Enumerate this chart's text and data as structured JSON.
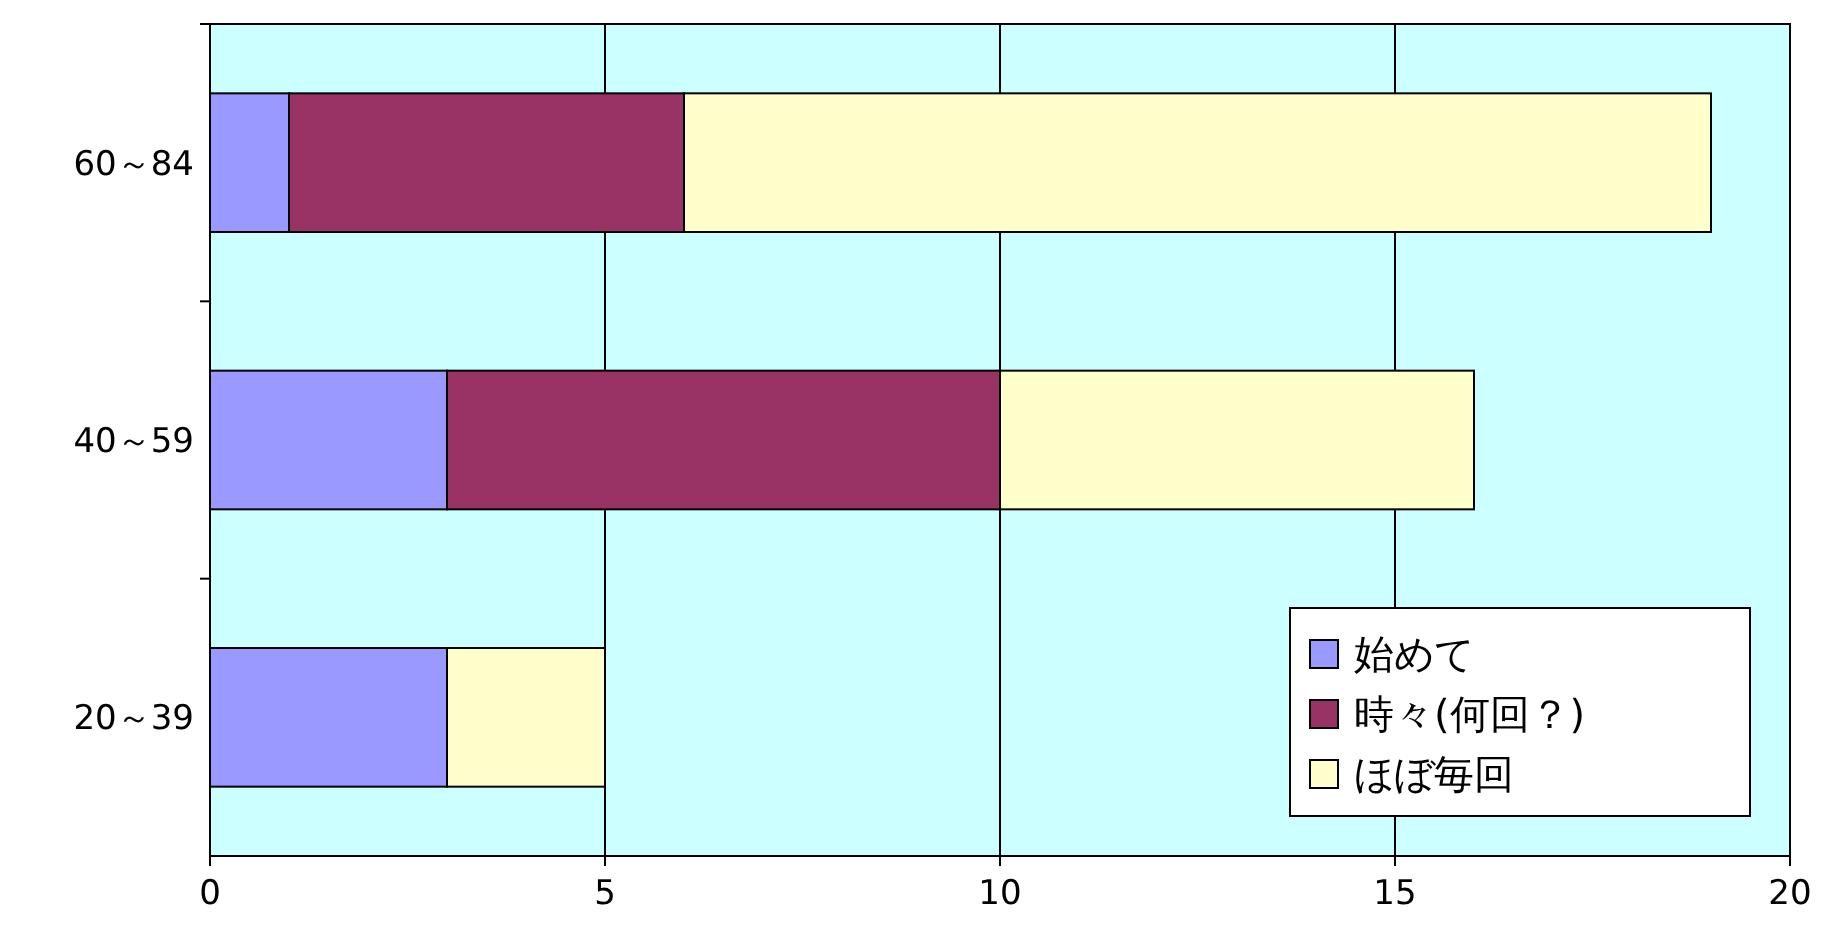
{
  "chart_data": {
    "type": "bar",
    "orientation": "horizontal",
    "stacked": true,
    "categories": [
      "60～84",
      "40～59",
      "20～39"
    ],
    "series": [
      {
        "name": "始めて",
        "color": "#9999ff",
        "values": [
          1,
          3,
          3
        ]
      },
      {
        "name": "時々(何回？)",
        "color": "#993366",
        "values": [
          5,
          7,
          0
        ]
      },
      {
        "name": "ほぼ毎回",
        "color": "#ffffcc",
        "values": [
          13,
          6,
          2
        ]
      }
    ],
    "xlim": [
      0,
      20
    ],
    "xticks": [
      0,
      5,
      10,
      15,
      20
    ],
    "grid": "x",
    "legend": "bottom right"
  }
}
